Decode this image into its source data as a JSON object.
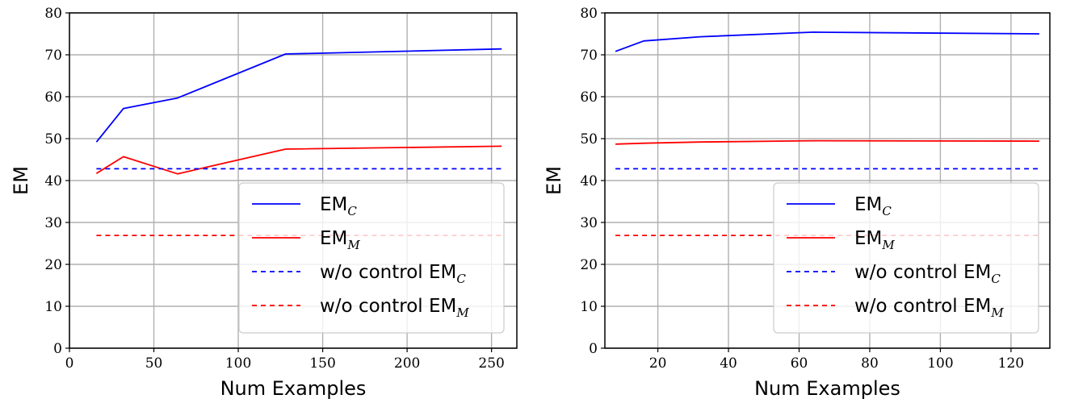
{
  "chart_data": [
    {
      "type": "line",
      "xlabel": "Num Examples",
      "ylabel": "EM",
      "xlim": [
        0,
        265
      ],
      "ylim": [
        0,
        80
      ],
      "xticks": [
        0,
        50,
        100,
        150,
        200,
        250
      ],
      "yticks": [
        0,
        10,
        20,
        30,
        40,
        50,
        60,
        70,
        80
      ],
      "grid": true,
      "legend_position": "lower-right",
      "series": [
        {
          "name": "EM",
          "sub": "C",
          "color": "#0000ff",
          "dash": false,
          "x": [
            16,
            32,
            64,
            128,
            256
          ],
          "y": [
            49.2,
            57.2,
            59.7,
            70.2,
            71.4
          ]
        },
        {
          "name": "EM",
          "sub": "M",
          "color": "#ff0000",
          "dash": false,
          "x": [
            16,
            32,
            64,
            128,
            256
          ],
          "y": [
            41.7,
            45.7,
            41.6,
            47.5,
            48.2
          ]
        },
        {
          "name": "w/o control EM",
          "sub": "C",
          "color": "#0000ff",
          "dash": true,
          "x": [
            16,
            256
          ],
          "y": [
            42.8,
            42.8
          ]
        },
        {
          "name": "w/o control EM",
          "sub": "M",
          "color": "#ff0000",
          "dash": true,
          "x": [
            16,
            256
          ],
          "y": [
            26.9,
            26.9
          ]
        }
      ]
    },
    {
      "type": "line",
      "xlabel": "Num Examples",
      "ylabel": "EM",
      "xlim": [
        5,
        131
      ],
      "ylim": [
        0,
        80
      ],
      "xticks": [
        20,
        40,
        60,
        80,
        100,
        120
      ],
      "yticks": [
        0,
        10,
        20,
        30,
        40,
        50,
        60,
        70,
        80
      ],
      "grid": true,
      "legend_position": "lower-right",
      "series": [
        {
          "name": "EM",
          "sub": "C",
          "color": "#0000ff",
          "dash": false,
          "x": [
            8,
            16,
            32,
            64,
            128
          ],
          "y": [
            70.8,
            73.3,
            74.3,
            75.4,
            75.0
          ]
        },
        {
          "name": "EM",
          "sub": "M",
          "color": "#ff0000",
          "dash": false,
          "x": [
            8,
            16,
            32,
            64,
            128
          ],
          "y": [
            48.7,
            48.9,
            49.2,
            49.5,
            49.4
          ]
        },
        {
          "name": "w/o control EM",
          "sub": "C",
          "color": "#0000ff",
          "dash": true,
          "x": [
            8,
            128
          ],
          "y": [
            42.8,
            42.8
          ]
        },
        {
          "name": "w/o control EM",
          "sub": "M",
          "color": "#ff0000",
          "dash": true,
          "x": [
            8,
            128
          ],
          "y": [
            26.9,
            26.9
          ]
        }
      ]
    }
  ]
}
